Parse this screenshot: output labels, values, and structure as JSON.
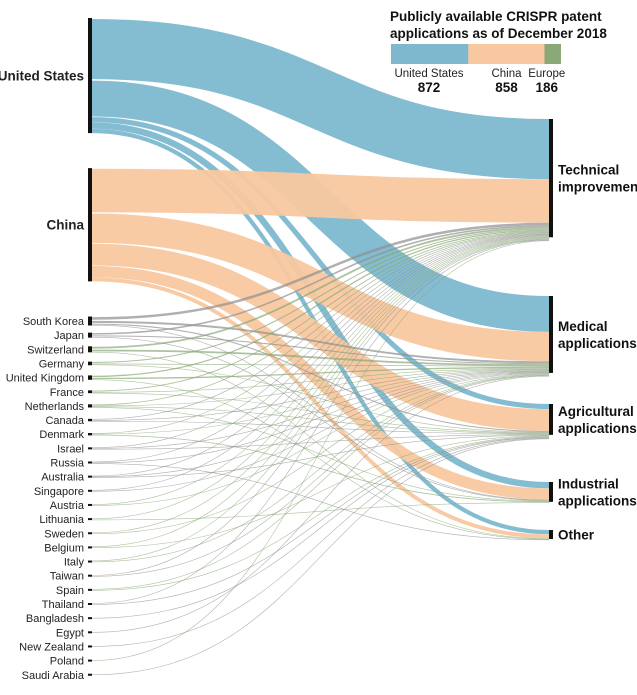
{
  "chart_data": {
    "type": "sankey",
    "title_lines": [
      "Publicly available CRISPR patent",
      "applications as of December 2018"
    ],
    "legend": [
      {
        "name": "United States",
        "value": "872",
        "color": "#7db8cf"
      },
      {
        "name": "China",
        "value": "858",
        "color": "#f8c8a0"
      },
      {
        "name": "Europe",
        "value": "186",
        "color": "#8aa878"
      }
    ],
    "colors": {
      "us": "#7db8cf",
      "china": "#f8c8a0",
      "europe": "#8aa878",
      "other": "#8e8e8e"
    },
    "sources": [
      {
        "name": "United States",
        "value": 872,
        "group": "us",
        "major": true
      },
      {
        "name": "China",
        "value": 858,
        "group": "china",
        "major": true
      },
      {
        "name": "South Korea",
        "value": 46,
        "group": "other"
      },
      {
        "name": "Japan",
        "value": 25,
        "group": "other"
      },
      {
        "name": "Switzerland",
        "value": 30,
        "group": "europe"
      },
      {
        "name": "Germany",
        "value": 18,
        "group": "europe"
      },
      {
        "name": "United Kingdom",
        "value": 22,
        "group": "europe"
      },
      {
        "name": "France",
        "value": 14,
        "group": "europe"
      },
      {
        "name": "Netherlands",
        "value": 16,
        "group": "europe"
      },
      {
        "name": "Canada",
        "value": 12,
        "group": "other"
      },
      {
        "name": "Denmark",
        "value": 12,
        "group": "europe"
      },
      {
        "name": "Israel",
        "value": 10,
        "group": "other"
      },
      {
        "name": "Russia",
        "value": 8,
        "group": "other"
      },
      {
        "name": "Australia",
        "value": 8,
        "group": "other"
      },
      {
        "name": "Singapore",
        "value": 6,
        "group": "other"
      },
      {
        "name": "Austria",
        "value": 5,
        "group": "europe"
      },
      {
        "name": "Lithuania",
        "value": 4,
        "group": "europe"
      },
      {
        "name": "Sweden",
        "value": 4,
        "group": "europe"
      },
      {
        "name": "Belgium",
        "value": 3,
        "group": "europe"
      },
      {
        "name": "Italy",
        "value": 3,
        "group": "europe"
      },
      {
        "name": "Taiwan",
        "value": 3,
        "group": "other"
      },
      {
        "name": "Spain",
        "value": 2,
        "group": "europe"
      },
      {
        "name": "Thailand",
        "value": 2,
        "group": "other"
      },
      {
        "name": "Bangladesh",
        "value": 1,
        "group": "other"
      },
      {
        "name": "Egypt",
        "value": 1,
        "group": "other"
      },
      {
        "name": "New Zealand",
        "value": 1,
        "group": "other"
      },
      {
        "name": "Poland",
        "value": 1,
        "group": "europe"
      },
      {
        "name": "Saudi Arabia",
        "value": 1,
        "group": "other"
      }
    ],
    "targets": [
      {
        "name": "Technical improvement",
        "lines": [
          "Technical",
          "improvement"
        ]
      },
      {
        "name": "Medical applications",
        "lines": [
          "Medical",
          "applications"
        ]
      },
      {
        "name": "Agricultural applications",
        "lines": [
          "Agricultural",
          "applications"
        ]
      },
      {
        "name": "Industrial applications",
        "lines": [
          "Industrial",
          "applications"
        ]
      },
      {
        "name": "Other",
        "lines": [
          "Other"
        ]
      }
    ],
    "links": [
      {
        "source": "United States",
        "target": "Technical improvement",
        "value": 470
      },
      {
        "source": "United States",
        "target": "Medical applications",
        "value": 280
      },
      {
        "source": "United States",
        "target": "Agricultural applications",
        "value": 40
      },
      {
        "source": "United States",
        "target": "Industrial applications",
        "value": 50
      },
      {
        "source": "United States",
        "target": "Other",
        "value": 32
      },
      {
        "source": "China",
        "target": "Technical improvement",
        "value": 340
      },
      {
        "source": "China",
        "target": "Medical applications",
        "value": 230
      },
      {
        "source": "China",
        "target": "Agricultural applications",
        "value": 170
      },
      {
        "source": "China",
        "target": "Industrial applications",
        "value": 88
      },
      {
        "source": "China",
        "target": "Other",
        "value": 30
      },
      {
        "source": "South Korea",
        "target": "Technical improvement",
        "value": 20
      },
      {
        "source": "South Korea",
        "target": "Medical applications",
        "value": 15
      },
      {
        "source": "South Korea",
        "target": "Agricultural applications",
        "value": 8
      },
      {
        "source": "South Korea",
        "target": "Industrial applications",
        "value": 3
      },
      {
        "source": "Japan",
        "target": "Technical improvement",
        "value": 12
      },
      {
        "source": "Japan",
        "target": "Medical applications",
        "value": 8
      },
      {
        "source": "Japan",
        "target": "Industrial applications",
        "value": 5
      },
      {
        "source": "Switzerland",
        "target": "Technical improvement",
        "value": 14
      },
      {
        "source": "Switzerland",
        "target": "Medical applications",
        "value": 14
      },
      {
        "source": "Switzerland",
        "target": "Other",
        "value": 2
      },
      {
        "source": "Germany",
        "target": "Technical improvement",
        "value": 8
      },
      {
        "source": "Germany",
        "target": "Medical applications",
        "value": 6
      },
      {
        "source": "Germany",
        "target": "Agricultural applications",
        "value": 4
      },
      {
        "source": "United Kingdom",
        "target": "Technical improvement",
        "value": 10
      },
      {
        "source": "United Kingdom",
        "target": "Medical applications",
        "value": 10
      },
      {
        "source": "United Kingdom",
        "target": "Other",
        "value": 2
      },
      {
        "source": "France",
        "target": "Technical improvement",
        "value": 7
      },
      {
        "source": "France",
        "target": "Medical applications",
        "value": 5
      },
      {
        "source": "France",
        "target": "Agricultural applications",
        "value": 2
      },
      {
        "source": "Netherlands",
        "target": "Technical improvement",
        "value": 6
      },
      {
        "source": "Netherlands",
        "target": "Medical applications",
        "value": 4
      },
      {
        "source": "Netherlands",
        "target": "Agricultural applications",
        "value": 4
      },
      {
        "source": "Netherlands",
        "target": "Industrial applications",
        "value": 2
      },
      {
        "source": "Canada",
        "target": "Technical improvement",
        "value": 5
      },
      {
        "source": "Canada",
        "target": "Medical applications",
        "value": 5
      },
      {
        "source": "Canada",
        "target": "Agricultural applications",
        "value": 2
      },
      {
        "source": "Denmark",
        "target": "Technical improvement",
        "value": 4
      },
      {
        "source": "Denmark",
        "target": "Medical applications",
        "value": 2
      },
      {
        "source": "Denmark",
        "target": "Industrial applications",
        "value": 6
      },
      {
        "source": "Israel",
        "target": "Technical improvement",
        "value": 4
      },
      {
        "source": "Israel",
        "target": "Medical applications",
        "value": 4
      },
      {
        "source": "Israel",
        "target": "Agricultural applications",
        "value": 2
      },
      {
        "source": "Russia",
        "target": "Technical improvement",
        "value": 4
      },
      {
        "source": "Russia",
        "target": "Medical applications",
        "value": 3
      },
      {
        "source": "Russia",
        "target": "Other",
        "value": 1
      },
      {
        "source": "Australia",
        "target": "Technical improvement",
        "value": 3
      },
      {
        "source": "Australia",
        "target": "Medical applications",
        "value": 3
      },
      {
        "source": "Australia",
        "target": "Agricultural applications",
        "value": 2
      },
      {
        "source": "Singapore",
        "target": "Technical improvement",
        "value": 3
      },
      {
        "source": "Singapore",
        "target": "Medical applications",
        "value": 3
      },
      {
        "source": "Austria",
        "target": "Technical improvement",
        "value": 3
      },
      {
        "source": "Austria",
        "target": "Medical applications",
        "value": 2
      },
      {
        "source": "Lithuania",
        "target": "Technical improvement",
        "value": 3
      },
      {
        "source": "Lithuania",
        "target": "Industrial applications",
        "value": 1
      },
      {
        "source": "Sweden",
        "target": "Technical improvement",
        "value": 2
      },
      {
        "source": "Sweden",
        "target": "Medical applications",
        "value": 2
      },
      {
        "source": "Belgium",
        "target": "Technical improvement",
        "value": 1
      },
      {
        "source": "Belgium",
        "target": "Agricultural applications",
        "value": 2
      },
      {
        "source": "Italy",
        "target": "Technical improvement",
        "value": 1
      },
      {
        "source": "Italy",
        "target": "Medical applications",
        "value": 2
      },
      {
        "source": "Taiwan",
        "target": "Technical improvement",
        "value": 2
      },
      {
        "source": "Taiwan",
        "target": "Medical applications",
        "value": 1
      },
      {
        "source": "Spain",
        "target": "Medical applications",
        "value": 1
      },
      {
        "source": "Spain",
        "target": "Agricultural applications",
        "value": 1
      },
      {
        "source": "Thailand",
        "target": "Technical improvement",
        "value": 1
      },
      {
        "source": "Thailand",
        "target": "Agricultural applications",
        "value": 1
      },
      {
        "source": "Bangladesh",
        "target": "Agricultural applications",
        "value": 1
      },
      {
        "source": "Egypt",
        "target": "Medical applications",
        "value": 1
      },
      {
        "source": "New Zealand",
        "target": "Agricultural applications",
        "value": 1
      },
      {
        "source": "Poland",
        "target": "Technical improvement",
        "value": 1
      },
      {
        "source": "Saudi Arabia",
        "target": "Agricultural applications",
        "value": 1
      }
    ]
  }
}
